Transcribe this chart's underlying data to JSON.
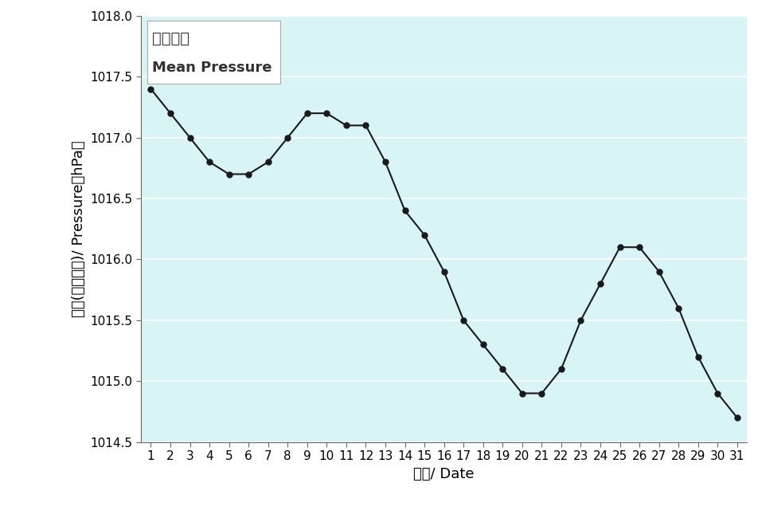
{
  "days": [
    1,
    2,
    3,
    4,
    5,
    6,
    7,
    8,
    9,
    10,
    11,
    12,
    13,
    14,
    15,
    16,
    17,
    18,
    19,
    20,
    21,
    22,
    23,
    24,
    25,
    26,
    27,
    28,
    29,
    30,
    31
  ],
  "pressure": [
    1017.4,
    1017.2,
    1017.0,
    1016.8,
    1016.7,
    1016.7,
    1016.8,
    1017.0,
    1017.2,
    1017.2,
    1017.1,
    1017.1,
    1016.8,
    1016.4,
    1016.2,
    1015.9,
    1015.5,
    1015.3,
    1015.1,
    1014.9,
    1014.9,
    1015.1,
    1015.5,
    1015.8,
    1016.1,
    1016.1,
    1015.9,
    1015.6,
    1015.2,
    1014.9,
    1014.7
  ],
  "ylim": [
    1014.5,
    1018.0
  ],
  "yticks": [
    1014.5,
    1015.0,
    1015.5,
    1016.0,
    1016.5,
    1017.0,
    1017.5,
    1018.0
  ],
  "xlabel": "日期/ Date",
  "ylabel": "氣壓(百帕斯卡)/ Pressure（hPa）",
  "legend_line1": "平均氣壓",
  "legend_line2": "Mean Pressure",
  "bg_color": "#d8f4f4",
  "line_color": "#1a1a1a",
  "marker_color": "#1a1a1a",
  "grid_color": "#ffffff",
  "outer_bg": "#ffffff",
  "axis_label_fontsize": 13,
  "tick_fontsize": 11,
  "legend_fontsize1": 14,
  "legend_fontsize2": 13
}
